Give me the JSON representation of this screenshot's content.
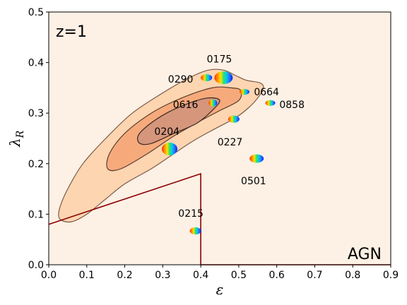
{
  "chart_data": {
    "type": "scatter",
    "xlim": [
      0,
      0.9
    ],
    "ylim": [
      0,
      0.5
    ],
    "xticks": [
      0.0,
      0.1,
      0.2,
      0.3,
      0.4,
      0.5,
      0.6,
      0.7,
      0.8,
      0.9
    ],
    "yticks": [
      0.0,
      0.1,
      0.2,
      0.3,
      0.4,
      0.5
    ],
    "xtick_labels": [
      "0.0",
      "0.1",
      "0.2",
      "0.3",
      "0.4",
      "0.5",
      "0.6",
      "0.7",
      "0.8",
      "0.9"
    ],
    "ytick_labels": [
      "0.0",
      "0.1",
      "0.2",
      "0.3",
      "0.4",
      "0.5"
    ],
    "xlabel": "ε",
    "ylabel_main": "λ",
    "ylabel_sub": "R",
    "grid": false,
    "background_color": "#fdf0e4",
    "top_left_label": "z=1",
    "bottom_right_label": "AGN",
    "contours": [
      {
        "level": "outer",
        "fill": "#fdd5b1",
        "stroke": "#7a5a48",
        "points": [
          [
            0.03,
            0.09
          ],
          [
            0.06,
            0.085
          ],
          [
            0.1,
            0.1
          ],
          [
            0.15,
            0.13
          ],
          [
            0.2,
            0.16
          ],
          [
            0.27,
            0.19
          ],
          [
            0.32,
            0.215
          ],
          [
            0.38,
            0.245
          ],
          [
            0.44,
            0.27
          ],
          [
            0.49,
            0.29
          ],
          [
            0.525,
            0.31
          ],
          [
            0.55,
            0.33
          ],
          [
            0.565,
            0.35
          ],
          [
            0.555,
            0.36
          ],
          [
            0.52,
            0.365
          ],
          [
            0.49,
            0.375
          ],
          [
            0.46,
            0.385
          ],
          [
            0.42,
            0.385
          ],
          [
            0.37,
            0.37
          ],
          [
            0.3,
            0.34
          ],
          [
            0.22,
            0.3
          ],
          [
            0.15,
            0.25
          ],
          [
            0.09,
            0.2
          ],
          [
            0.05,
            0.15
          ],
          [
            0.028,
            0.11
          ]
        ]
      },
      {
        "level": "middle",
        "fill": "#f6aa7c",
        "stroke": "#5a3e2e",
        "points": [
          [
            0.155,
            0.19
          ],
          [
            0.19,
            0.19
          ],
          [
            0.26,
            0.22
          ],
          [
            0.33,
            0.255
          ],
          [
            0.4,
            0.285
          ],
          [
            0.45,
            0.305
          ],
          [
            0.5,
            0.325
          ],
          [
            0.505,
            0.345
          ],
          [
            0.48,
            0.35
          ],
          [
            0.43,
            0.35
          ],
          [
            0.35,
            0.33
          ],
          [
            0.27,
            0.3
          ],
          [
            0.2,
            0.26
          ],
          [
            0.16,
            0.22
          ]
        ]
      },
      {
        "level": "inner",
        "fill": "#d5967c",
        "stroke": "#3b2a22",
        "points": [
          [
            0.24,
            0.24
          ],
          [
            0.27,
            0.24
          ],
          [
            0.33,
            0.26
          ],
          [
            0.39,
            0.28
          ],
          [
            0.43,
            0.305
          ],
          [
            0.45,
            0.325
          ],
          [
            0.42,
            0.33
          ],
          [
            0.37,
            0.32
          ],
          [
            0.31,
            0.3
          ],
          [
            0.26,
            0.275
          ],
          [
            0.235,
            0.255
          ]
        ]
      }
    ],
    "boundary_line": {
      "color": "#8b0000",
      "points": [
        [
          0.0,
          0.08
        ],
        [
          0.4,
          0.18
        ],
        [
          0.4,
          0.0
        ],
        [
          0.9,
          0.0
        ]
      ]
    },
    "galaxies": [
      {
        "label": "0175",
        "x": 0.46,
        "y": 0.37,
        "label_x": 0.449,
        "label_y": 0.4
      },
      {
        "label": "0290",
        "x": 0.415,
        "y": 0.37,
        "label_x": 0.347,
        "label_y": 0.36
      },
      {
        "label": "0664",
        "x": 0.515,
        "y": 0.342,
        "label_x": 0.573,
        "label_y": 0.335
      },
      {
        "label": "0858",
        "x": 0.583,
        "y": 0.32,
        "label_x": 0.64,
        "label_y": 0.31
      },
      {
        "label": "0616",
        "x": 0.432,
        "y": 0.32,
        "label_x": 0.36,
        "label_y": 0.31
      },
      {
        "label": "0204",
        "x": 0.318,
        "y": 0.229,
        "label_x": 0.311,
        "label_y": 0.257
      },
      {
        "label": "0227",
        "x": 0.487,
        "y": 0.288,
        "label_x": 0.477,
        "label_y": 0.236
      },
      {
        "label": "0501",
        "x": 0.547,
        "y": 0.21,
        "label_x": 0.539,
        "label_y": 0.159
      },
      {
        "label": "0215",
        "x": 0.386,
        "y": 0.067,
        "label_x": 0.374,
        "label_y": 0.095
      }
    ]
  }
}
